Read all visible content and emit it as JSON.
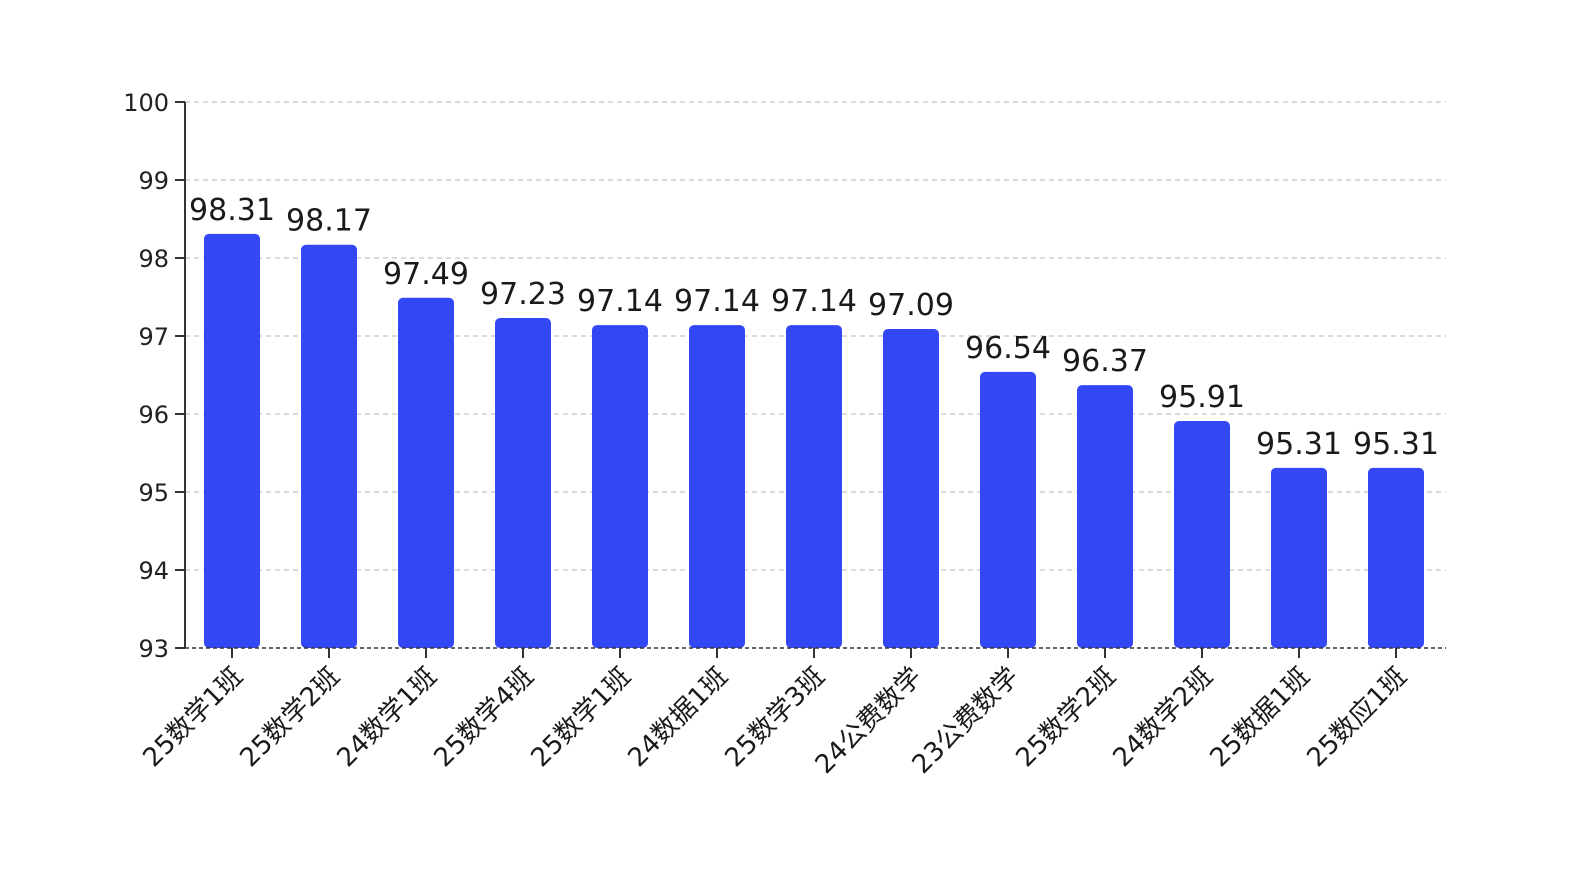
{
  "chart_data": {
    "type": "bar",
    "categories": [
      "25数学1班",
      "25数学2班",
      "24数学1班",
      "25数学4班",
      "25数学1班",
      "24数据1班",
      "25数学3班",
      "24公费数学",
      "23公费数学",
      "25数学2班",
      "24数学2班",
      "25数据1班",
      "25数应1班"
    ],
    "values": [
      98.31,
      98.17,
      97.49,
      97.23,
      97.14,
      97.14,
      97.14,
      97.09,
      96.54,
      96.37,
      95.91,
      95.31,
      95.31
    ],
    "data_labels": [
      "98.31",
      "98.17",
      "97.49",
      "97.23",
      "97.14",
      "97.14",
      "97.14",
      "97.09",
      "96.54",
      "96.37",
      "95.91",
      "95.31",
      "95.31"
    ],
    "ylim": [
      93,
      100
    ],
    "yticks": [
      "93",
      "94",
      "95",
      "96",
      "97",
      "98",
      "99",
      "100"
    ],
    "grid": true,
    "bar_color": "#3347f5"
  }
}
